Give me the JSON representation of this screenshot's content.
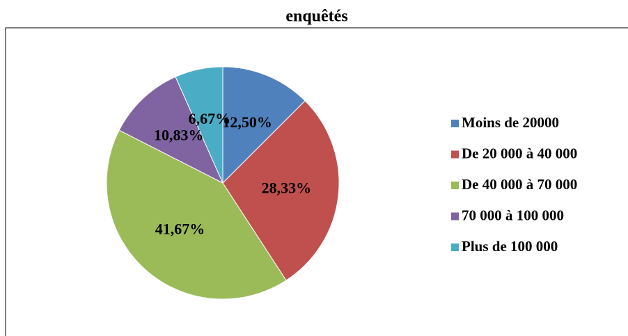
{
  "chart_data": {
    "type": "pie",
    "title": "enquêtés",
    "categories": [
      "Moins de 20000",
      "De 20 000 à 40 000",
      "De 40 000 à 70 000",
      "70 000 à 100 000",
      "Plus de 100 000"
    ],
    "values": [
      12.5,
      28.33,
      41.67,
      10.83,
      6.67
    ],
    "value_labels": [
      "12,50%",
      "28,33%",
      "41,67%",
      "10,83%",
      "6,67%"
    ],
    "colors": [
      "#4f81bd",
      "#c0504d",
      "#9bbb59",
      "#8064a2",
      "#4bacc6"
    ],
    "legend": "right"
  }
}
